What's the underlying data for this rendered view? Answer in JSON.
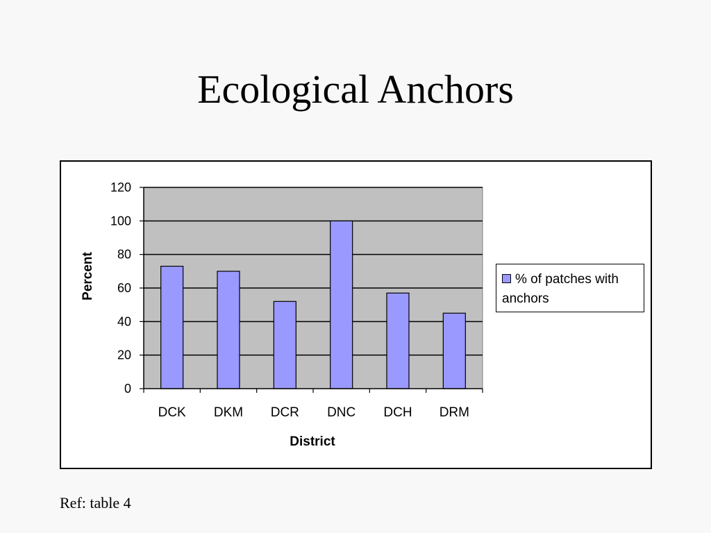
{
  "slide": {
    "title": "Ecological Anchors",
    "ref_note": "Ref: table 4"
  },
  "colors": {
    "bar": "#9999ff",
    "plot_area": "#c0c0c0",
    "gridline": "#000000"
  },
  "chart_data": {
    "type": "bar",
    "categories": [
      "DCK",
      "DKM",
      "DCR",
      "DNC",
      "DCH",
      "DRM"
    ],
    "series": [
      {
        "name": "% of patches with anchors",
        "values": [
          73,
          70,
          52,
          100,
          57,
          45
        ]
      }
    ],
    "title": "",
    "xlabel": "District",
    "ylabel": "Percent",
    "ylim": [
      0,
      120
    ],
    "yticks": [
      0,
      20,
      40,
      60,
      80,
      100,
      120
    ],
    "grid": true,
    "legend_position": "right"
  }
}
